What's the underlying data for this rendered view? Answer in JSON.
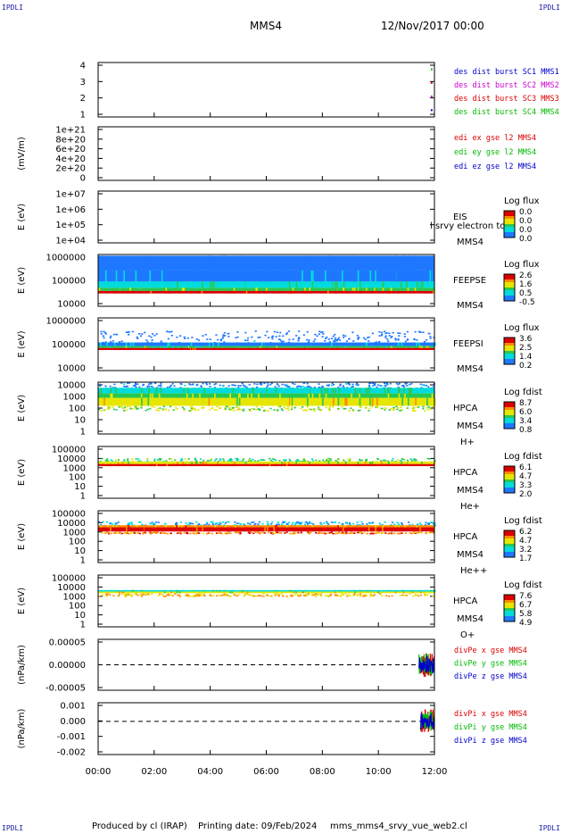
{
  "header": {
    "spacecraft": "MMS4",
    "date": "12/Nov/2017 00:00",
    "corner_marks": [
      "IPDLI",
      "IPDLI",
      "IPDLI",
      "IPDLI"
    ]
  },
  "footer": {
    "producer": "Produced by cl (IRAP)",
    "printing": "Printing date: 09/Feb/2024",
    "filename": "mms_mms4_srvy_vue_web2.cl"
  },
  "time_axis": {
    "ticks": [
      "00:00",
      "02:00",
      "04:00",
      "06:00",
      "08:00",
      "10:00",
      "12:00"
    ],
    "range_hours": [
      0,
      12
    ]
  },
  "colors": {
    "blue": "#0000cc",
    "magenta": "#cc00cc",
    "red": "#dd0000",
    "green": "#00bb00"
  },
  "chart_data": [
    {
      "type": "scatter",
      "panel": "burst",
      "ylabel": "",
      "yticks": [
        "4",
        "3",
        "2",
        "1"
      ],
      "ylim": [
        0.5,
        4.5
      ],
      "series": [
        {
          "name": "des dist burst SC1 MMS1",
          "color": "#0000cc"
        },
        {
          "name": "des dist burst SC2 MMS2",
          "color": "#cc00cc"
        },
        {
          "name": "des dist burst SC3 MMS3",
          "color": "#dd0000"
        },
        {
          "name": "des dist burst SC4 MMS4",
          "color": "#00bb00"
        }
      ],
      "points": [
        {
          "x": 11.9,
          "y": 4,
          "series": 3
        },
        {
          "x": 11.9,
          "y": 3,
          "series": 2
        },
        {
          "x": 11.9,
          "y": 2,
          "series": 1
        },
        {
          "x": 11.9,
          "y": 1,
          "series": 0
        }
      ]
    },
    {
      "type": "line",
      "panel": "edi",
      "ylabel": "(mV/m)",
      "yticks": [
        "1e+21",
        "8e+20",
        "6e+20",
        "4e+20",
        "2e+20",
        "0"
      ],
      "ylim": [
        0,
        1e+21
      ],
      "series": [
        {
          "name": "edi ex gse l2 MMS4",
          "color": "#dd0000"
        },
        {
          "name": "edi ey gse l2 MMS4",
          "color": "#00bb00"
        },
        {
          "name": "edi ez gse l2 MMS4",
          "color": "#0000cc"
        }
      ],
      "zero_line": true
    },
    {
      "type": "heatmap",
      "panel": "eis",
      "ylabel": "E (eV)",
      "yticks": [
        "1e+07",
        "1e+06",
        "1e+05",
        "1e+04"
      ],
      "instrument": "EIS",
      "spacecraft": "MMS4",
      "overlay_text": "l srvy electron to",
      "colorbar_title": "Log flux",
      "colorbar_ticks": [
        "0.0",
        "0.0",
        "0.0",
        "0.0"
      ],
      "empty": true
    },
    {
      "type": "heatmap",
      "panel": "feeps_e",
      "ylabel": "E (eV)",
      "yticks": [
        "1000000",
        "100000",
        "10000"
      ],
      "ylim_log": [
        4,
        6.1
      ],
      "instrument": "FEEPSE",
      "spacecraft": "MMS4",
      "colorbar_title": "Log flux",
      "colorbar_ticks": [
        "2.6",
        "1.6",
        "0.5",
        "-0.5"
      ],
      "bands": [
        {
          "from": 6.05,
          "to": 5.45,
          "level": 0.05
        },
        {
          "from": 5.45,
          "to": 5.0,
          "level": 0.12
        },
        {
          "from": 5.0,
          "to": 4.75,
          "level": 0.35
        },
        {
          "from": 4.75,
          "to": 4.62,
          "level": 0.55
        },
        {
          "from": 4.62,
          "to": 4.52,
          "level": 0.97
        }
      ]
    },
    {
      "type": "heatmap",
      "panel": "feeps_i",
      "ylabel": "E (eV)",
      "yticks": [
        "1000000",
        "100000",
        "10000"
      ],
      "ylim_log": [
        4,
        6.1
      ],
      "instrument": "FEEPSI",
      "spacecraft": "MMS4",
      "colorbar_title": "Log flux",
      "colorbar_ticks": [
        "3.6",
        "2.5",
        "1.4",
        "0.2"
      ],
      "bands": [
        {
          "from": 5.6,
          "to": 5.12,
          "level": 0.08,
          "sparse": true
        },
        {
          "from": 5.12,
          "to": 4.98,
          "level": 0.15
        },
        {
          "from": 4.98,
          "to": 4.9,
          "level": 0.45
        },
        {
          "from": 4.9,
          "to": 4.82,
          "level": 0.97
        }
      ]
    },
    {
      "type": "heatmap",
      "panel": "hpca_h",
      "ylabel": "E (eV)",
      "yticks": [
        "10000",
        "1000",
        "100",
        "10",
        "1"
      ],
      "ylim_log": [
        0,
        4.6
      ],
      "instrument": "HPCA",
      "spacecraft": "MMS4",
      "species": "H+",
      "colorbar_title": "Log fdist",
      "colorbar_ticks": [
        "8.7",
        "6.0",
        "3.4",
        "0.8"
      ],
      "bands": [
        {
          "from": 4.6,
          "to": 4.1,
          "level": 0.1,
          "sparse": true
        },
        {
          "from": 4.1,
          "to": 3.6,
          "level": 0.4
        },
        {
          "from": 3.6,
          "to": 3.2,
          "level": 0.55
        },
        {
          "from": 3.2,
          "to": 2.5,
          "level": 0.62
        },
        {
          "from": 2.5,
          "to": 2.1,
          "level": 0.58,
          "sparse": true
        }
      ]
    },
    {
      "type": "heatmap",
      "panel": "hpca_he",
      "ylabel": "E (eV)",
      "yticks": [
        "100000",
        "10000",
        "1000",
        "100",
        "10",
        "1"
      ],
      "ylim_log": [
        0,
        5
      ],
      "instrument": "HPCA",
      "spacecraft": "MMS4",
      "species": "He+",
      "colorbar_title": "Log fdist",
      "colorbar_ticks": [
        "6.1",
        "4.7",
        "3.3",
        "2.0"
      ],
      "bands": [
        {
          "from": 3.9,
          "to": 3.55,
          "level": 0.45,
          "sparse": true
        },
        {
          "from": 3.55,
          "to": 3.3,
          "level": 0.6
        },
        {
          "from": 3.3,
          "to": 3.1,
          "level": 0.97
        }
      ]
    },
    {
      "type": "heatmap",
      "panel": "hpca_hepp",
      "ylabel": "E (eV)",
      "yticks": [
        "100000",
        "10000",
        "1000",
        "100",
        "10",
        "1"
      ],
      "ylim_log": [
        0,
        5
      ],
      "instrument": "HPCA",
      "spacecraft": "MMS4",
      "species": "He++",
      "colorbar_title": "Log fdist",
      "colorbar_ticks": [
        "6.2",
        "4.7",
        "3.2",
        "1.7"
      ],
      "bands": [
        {
          "from": 4.0,
          "to": 3.6,
          "level": 0.2,
          "sparse": true
        },
        {
          "from": 3.6,
          "to": 3.4,
          "level": 0.72
        },
        {
          "from": 3.4,
          "to": 3.0,
          "level": 0.93
        },
        {
          "from": 3.0,
          "to": 2.85,
          "level": 0.8,
          "sparse": true
        }
      ]
    },
    {
      "type": "heatmap",
      "panel": "hpca_o",
      "ylabel": "E (eV)",
      "yticks": [
        "100000",
        "10000",
        "1000",
        "100",
        "10",
        "1"
      ],
      "ylim_log": [
        0,
        5
      ],
      "instrument": "HPCA",
      "spacecraft": "MMS4",
      "species": "O+",
      "colorbar_title": "Log fdist",
      "colorbar_ticks": [
        "7.6",
        "6.7",
        "5.8",
        "4.9"
      ],
      "bands": [
        {
          "from": 3.55,
          "to": 3.4,
          "level": 0.4
        },
        {
          "from": 3.4,
          "to": 3.25,
          "level": 0.62
        },
        {
          "from": 3.25,
          "to": 3.0,
          "level": 0.7,
          "sparse": true
        }
      ]
    },
    {
      "type": "line",
      "panel": "divpe",
      "ylabel": "(nPa/km)",
      "yticks": [
        "0.00005",
        "0.00000",
        "-0.00005"
      ],
      "ylim": [
        -8e-05,
        8e-05
      ],
      "series": [
        {
          "name": "divPe x gse MMS4",
          "color": "#dd0000"
        },
        {
          "name": "divPe y gse MMS4",
          "color": "#00bb00"
        },
        {
          "name": "divPe z gse MMS4",
          "color": "#0000cc"
        }
      ],
      "zero_line": true,
      "activity_start": 11.45,
      "amplitude": 4e-05
    },
    {
      "type": "line",
      "panel": "divpi",
      "ylabel": "(nPa/km)",
      "yticks": [
        "0.001",
        "0.000",
        "-0.001",
        "-0.002"
      ],
      "ylim": [
        -0.0025,
        0.0014
      ],
      "series": [
        {
          "name": "divPi x gse MMS4",
          "color": "#dd0000"
        },
        {
          "name": "divPi y gse MMS4",
          "color": "#00bb00"
        },
        {
          "name": "divPi z gse MMS4",
          "color": "#0000cc"
        }
      ],
      "zero_line": true,
      "activity_start": 11.5,
      "amplitude": 0.0009
    }
  ]
}
